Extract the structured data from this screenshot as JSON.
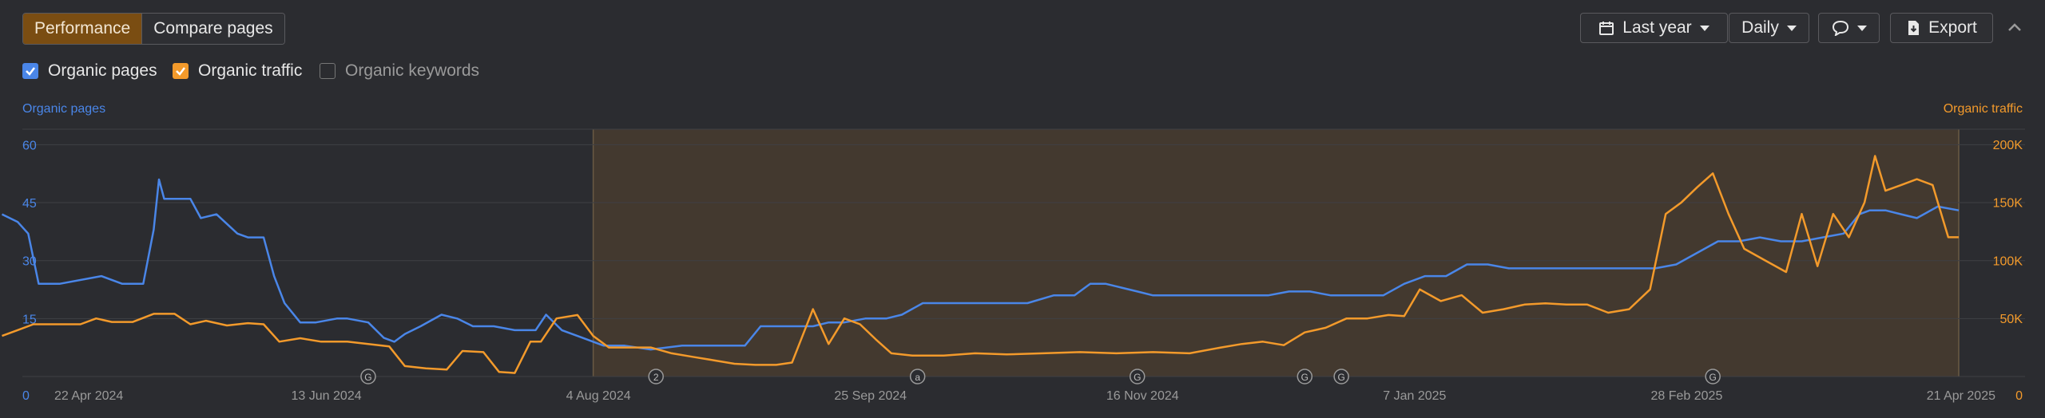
{
  "toolbar": {
    "tab_performance": "Performance",
    "tab_compare": "Compare pages",
    "range_label": "Last year",
    "interval_label": "Daily",
    "export_label": "Export"
  },
  "legend": {
    "pages_label": "Organic pages",
    "traffic_label": "Organic traffic",
    "keywords_label": "Organic keywords"
  },
  "colors": {
    "pages": "#4a86e8",
    "traffic": "#f39a2b",
    "highlight": "#f39a2b"
  },
  "chart_data": {
    "type": "line",
    "left_axis_label": "Organic pages",
    "right_axis_label": "Organic traffic",
    "x_labels": [
      "22 Apr 2024",
      "13 Jun 2024",
      "4 Aug 2024",
      "25 Sep 2024",
      "16 Nov 2024",
      "7 Jan 2025",
      "28 Feb 2025",
      "21 Apr 2025"
    ],
    "y_left_ticks": [
      "0",
      "15",
      "30",
      "45",
      "60"
    ],
    "y_right_ticks": [
      "0",
      "50K",
      "100K",
      "150K",
      "200K"
    ],
    "ylim_left": [
      0,
      64
    ],
    "ylim_right": [
      0,
      213000
    ],
    "highlight_range": [
      "2024-08-03",
      "2025-04-21"
    ],
    "annotations": [
      {
        "date": "2024-06-21",
        "label": "G"
      },
      {
        "date": "2024-08-15",
        "label": "2"
      },
      {
        "date": "2024-10-04",
        "label": "a"
      },
      {
        "date": "2024-11-15",
        "label": "G"
      },
      {
        "date": "2024-12-17",
        "label": "G"
      },
      {
        "date": "2024-12-24",
        "label": "G"
      },
      {
        "date": "2025-03-05",
        "label": "G"
      }
    ],
    "series": [
      {
        "name": "Organic pages",
        "axis": "left",
        "points": [
          [
            "2024-04-12",
            42
          ],
          [
            "2024-04-15",
            40
          ],
          [
            "2024-04-17",
            37
          ],
          [
            "2024-04-19",
            24
          ],
          [
            "2024-04-23",
            24
          ],
          [
            "2024-05-01",
            26
          ],
          [
            "2024-05-05",
            24
          ],
          [
            "2024-05-09",
            24
          ],
          [
            "2024-05-11",
            38
          ],
          [
            "2024-05-12",
            51
          ],
          [
            "2024-05-13",
            46
          ],
          [
            "2024-05-18",
            46
          ],
          [
            "2024-05-20",
            41
          ],
          [
            "2024-05-23",
            42
          ],
          [
            "2024-05-27",
            37
          ],
          [
            "2024-05-29",
            36
          ],
          [
            "2024-06-01",
            36
          ],
          [
            "2024-06-03",
            26
          ],
          [
            "2024-06-05",
            19
          ],
          [
            "2024-06-08",
            14
          ],
          [
            "2024-06-11",
            14
          ],
          [
            "2024-06-15",
            15
          ],
          [
            "2024-06-17",
            15
          ],
          [
            "2024-06-21",
            14
          ],
          [
            "2024-06-24",
            10
          ],
          [
            "2024-06-26",
            9
          ],
          [
            "2024-06-28",
            11
          ],
          [
            "2024-07-01",
            13
          ],
          [
            "2024-07-05",
            16
          ],
          [
            "2024-07-08",
            15
          ],
          [
            "2024-07-11",
            13
          ],
          [
            "2024-07-15",
            13
          ],
          [
            "2024-07-19",
            12
          ],
          [
            "2024-07-23",
            12
          ],
          [
            "2024-07-25",
            16
          ],
          [
            "2024-07-28",
            12
          ],
          [
            "2024-08-01",
            10
          ],
          [
            "2024-08-05",
            8
          ],
          [
            "2024-08-09",
            8
          ],
          [
            "2024-08-14",
            7
          ],
          [
            "2024-08-20",
            8
          ],
          [
            "2024-08-26",
            8
          ],
          [
            "2024-09-01",
            8
          ],
          [
            "2024-09-04",
            13
          ],
          [
            "2024-09-07",
            13
          ],
          [
            "2024-09-11",
            13
          ],
          [
            "2024-09-14",
            13
          ],
          [
            "2024-09-17",
            14
          ],
          [
            "2024-09-20",
            14
          ],
          [
            "2024-09-24",
            15
          ],
          [
            "2024-09-28",
            15
          ],
          [
            "2024-10-01",
            16
          ],
          [
            "2024-10-05",
            19
          ],
          [
            "2024-10-09",
            19
          ],
          [
            "2024-10-13",
            19
          ],
          [
            "2024-10-17",
            19
          ],
          [
            "2024-10-21",
            19
          ],
          [
            "2024-10-25",
            19
          ],
          [
            "2024-10-30",
            21
          ],
          [
            "2024-11-03",
            21
          ],
          [
            "2024-11-06",
            24
          ],
          [
            "2024-11-09",
            24
          ],
          [
            "2024-11-12",
            23
          ],
          [
            "2024-11-15",
            22
          ],
          [
            "2024-11-18",
            21
          ],
          [
            "2024-11-22",
            21
          ],
          [
            "2024-11-27",
            21
          ],
          [
            "2024-12-01",
            21
          ],
          [
            "2024-12-05",
            21
          ],
          [
            "2024-12-10",
            21
          ],
          [
            "2024-12-14",
            22
          ],
          [
            "2024-12-18",
            22
          ],
          [
            "2024-12-22",
            21
          ],
          [
            "2024-12-27",
            21
          ],
          [
            "2025-01-01",
            21
          ],
          [
            "2025-01-05",
            24
          ],
          [
            "2025-01-09",
            26
          ],
          [
            "2025-01-13",
            26
          ],
          [
            "2025-01-17",
            29
          ],
          [
            "2025-01-21",
            29
          ],
          [
            "2025-01-25",
            28
          ],
          [
            "2025-01-29",
            28
          ],
          [
            "2025-02-02",
            28
          ],
          [
            "2025-02-06",
            28
          ],
          [
            "2025-02-10",
            28
          ],
          [
            "2025-02-14",
            28
          ],
          [
            "2025-02-18",
            28
          ],
          [
            "2025-02-22",
            28
          ],
          [
            "2025-02-26",
            29
          ],
          [
            "2025-03-02",
            32
          ],
          [
            "2025-03-06",
            35
          ],
          [
            "2025-03-10",
            35
          ],
          [
            "2025-03-14",
            36
          ],
          [
            "2025-03-18",
            35
          ],
          [
            "2025-03-22",
            35
          ],
          [
            "2025-03-26",
            36
          ],
          [
            "2025-03-30",
            37
          ],
          [
            "2025-04-02",
            42
          ],
          [
            "2025-04-04",
            43
          ],
          [
            "2025-04-07",
            43
          ],
          [
            "2025-04-10",
            42
          ],
          [
            "2025-04-13",
            41
          ],
          [
            "2025-04-17",
            44
          ],
          [
            "2025-04-21",
            43
          ]
        ]
      },
      {
        "name": "Organic traffic",
        "axis": "right",
        "points": [
          [
            "2024-04-12",
            35000
          ],
          [
            "2024-04-15",
            40000
          ],
          [
            "2024-04-18",
            45000
          ],
          [
            "2024-04-22",
            45000
          ],
          [
            "2024-04-27",
            45000
          ],
          [
            "2024-04-30",
            50000
          ],
          [
            "2024-05-03",
            47000
          ],
          [
            "2024-05-07",
            47000
          ],
          [
            "2024-05-11",
            54000
          ],
          [
            "2024-05-15",
            54000
          ],
          [
            "2024-05-18",
            45000
          ],
          [
            "2024-05-21",
            48000
          ],
          [
            "2024-05-25",
            44000
          ],
          [
            "2024-05-29",
            46000
          ],
          [
            "2024-06-01",
            45000
          ],
          [
            "2024-06-04",
            30000
          ],
          [
            "2024-06-08",
            33000
          ],
          [
            "2024-06-12",
            30000
          ],
          [
            "2024-06-17",
            30000
          ],
          [
            "2024-06-21",
            28000
          ],
          [
            "2024-06-25",
            26000
          ],
          [
            "2024-06-28",
            9000
          ],
          [
            "2024-07-02",
            7000
          ],
          [
            "2024-07-06",
            6000
          ],
          [
            "2024-07-09",
            22000
          ],
          [
            "2024-07-13",
            21000
          ],
          [
            "2024-07-16",
            4000
          ],
          [
            "2024-07-19",
            3000
          ],
          [
            "2024-07-22",
            30000
          ],
          [
            "2024-07-24",
            30000
          ],
          [
            "2024-07-27",
            50000
          ],
          [
            "2024-07-31",
            53000
          ],
          [
            "2024-08-03",
            35000
          ],
          [
            "2024-08-06",
            25000
          ],
          [
            "2024-08-10",
            25000
          ],
          [
            "2024-08-14",
            25000
          ],
          [
            "2024-08-18",
            20000
          ],
          [
            "2024-08-22",
            17000
          ],
          [
            "2024-08-26",
            14000
          ],
          [
            "2024-08-30",
            11000
          ],
          [
            "2024-09-03",
            10000
          ],
          [
            "2024-09-07",
            10000
          ],
          [
            "2024-09-10",
            12000
          ],
          [
            "2024-09-12",
            35000
          ],
          [
            "2024-09-14",
            58000
          ],
          [
            "2024-09-17",
            28000
          ],
          [
            "2024-09-20",
            50000
          ],
          [
            "2024-09-23",
            45000
          ],
          [
            "2024-09-26",
            32000
          ],
          [
            "2024-09-29",
            20000
          ],
          [
            "2024-10-03",
            18000
          ],
          [
            "2024-10-09",
            18000
          ],
          [
            "2024-10-15",
            20000
          ],
          [
            "2024-10-21",
            19000
          ],
          [
            "2024-10-28",
            20000
          ],
          [
            "2024-11-04",
            21000
          ],
          [
            "2024-11-11",
            20000
          ],
          [
            "2024-11-18",
            21000
          ],
          [
            "2024-11-25",
            20000
          ],
          [
            "2024-12-01",
            25000
          ],
          [
            "2024-12-05",
            28000
          ],
          [
            "2024-12-09",
            30000
          ],
          [
            "2024-12-13",
            27000
          ],
          [
            "2024-12-17",
            38000
          ],
          [
            "2024-12-21",
            42000
          ],
          [
            "2024-12-25",
            50000
          ],
          [
            "2024-12-29",
            50000
          ],
          [
            "2025-01-02",
            53000
          ],
          [
            "2025-01-05",
            52000
          ],
          [
            "2025-01-08",
            75000
          ],
          [
            "2025-01-12",
            65000
          ],
          [
            "2025-01-16",
            70000
          ],
          [
            "2025-01-20",
            55000
          ],
          [
            "2025-01-24",
            58000
          ],
          [
            "2025-01-28",
            62000
          ],
          [
            "2025-02-01",
            63000
          ],
          [
            "2025-02-05",
            62000
          ],
          [
            "2025-02-09",
            62000
          ],
          [
            "2025-02-13",
            55000
          ],
          [
            "2025-02-17",
            58000
          ],
          [
            "2025-02-21",
            75000
          ],
          [
            "2025-02-24",
            140000
          ],
          [
            "2025-02-27",
            150000
          ],
          [
            "2025-03-02",
            163000
          ],
          [
            "2025-03-05",
            175000
          ],
          [
            "2025-03-08",
            140000
          ],
          [
            "2025-03-11",
            110000
          ],
          [
            "2025-03-15",
            100000
          ],
          [
            "2025-03-19",
            90000
          ],
          [
            "2025-03-22",
            140000
          ],
          [
            "2025-03-25",
            95000
          ],
          [
            "2025-03-28",
            140000
          ],
          [
            "2025-03-31",
            120000
          ],
          [
            "2025-04-03",
            150000
          ],
          [
            "2025-04-05",
            190000
          ],
          [
            "2025-04-07",
            160000
          ],
          [
            "2025-04-10",
            165000
          ],
          [
            "2025-04-13",
            170000
          ],
          [
            "2025-04-16",
            165000
          ],
          [
            "2025-04-19",
            120000
          ],
          [
            "2025-04-21",
            120000
          ]
        ]
      }
    ]
  }
}
